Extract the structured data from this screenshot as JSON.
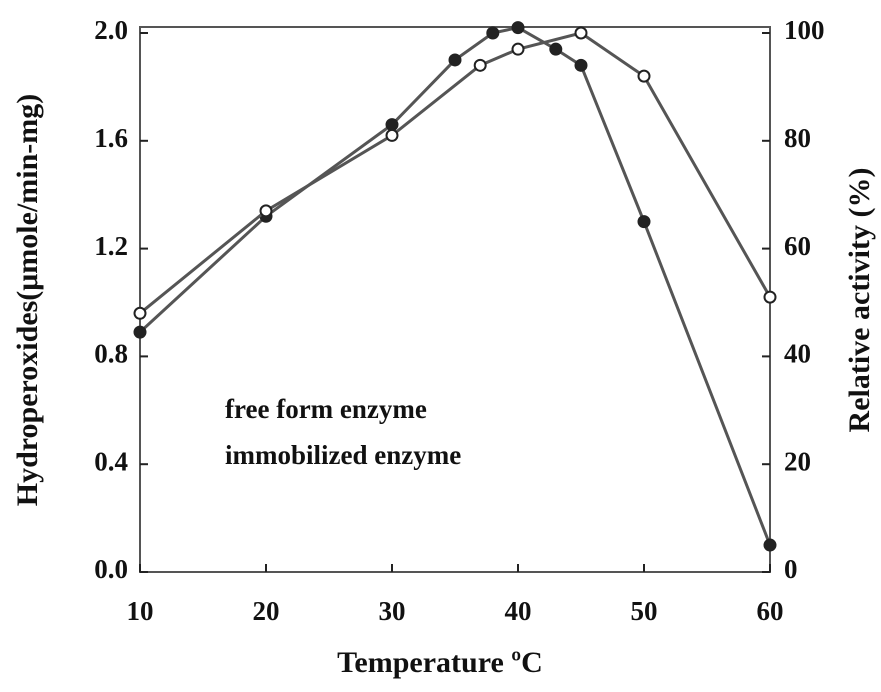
{
  "chart_data": {
    "type": "line",
    "x_label": "Temperature ºC",
    "y_label": "Hydroperoxides(μmole/min-mg)",
    "y2_label": "Relative activity (%)",
    "xlim": [
      10,
      60
    ],
    "xticks": [
      10,
      20,
      30,
      40,
      50,
      60
    ],
    "ylim": [
      0,
      2.0
    ],
    "yticks": [
      {
        "value": 0,
        "label": "0.0"
      },
      0.4,
      0.8,
      1.2,
      1.6,
      {
        "value": 2,
        "label": "2.0"
      }
    ],
    "y2lim": [
      0,
      100
    ],
    "y2ticks": [
      0,
      20,
      40,
      60,
      80,
      100
    ],
    "series": [
      {
        "name": "free form enzyme",
        "color": "#555555",
        "marker": "filled",
        "x": [
          10,
          20,
          30,
          35,
          38,
          40,
          43,
          45,
          50,
          60
        ],
        "values": [
          0.89,
          1.32,
          1.66,
          1.9,
          2.0,
          2.02,
          1.94,
          1.88,
          1.3,
          0.1
        ]
      },
      {
        "name": "immobilized enzyme",
        "color": "#555555",
        "marker": "open",
        "axis": "y2",
        "x": [
          10,
          20,
          30,
          37,
          40,
          45,
          50,
          60
        ],
        "values": [
          48,
          67,
          81,
          94,
          97,
          100,
          92,
          51
        ]
      }
    ]
  }
}
